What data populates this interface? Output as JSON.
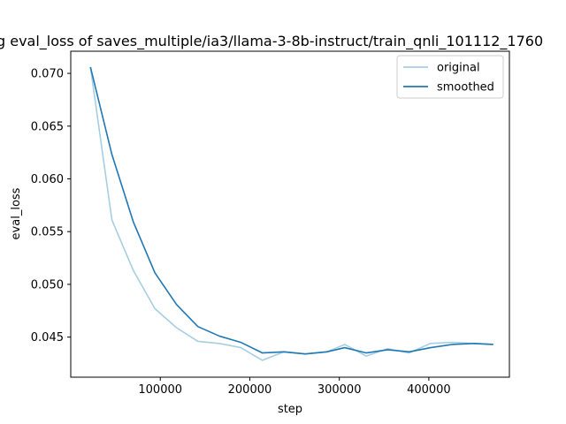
{
  "chart_data": {
    "type": "line",
    "title": "ng eval_loss of saves_multiple/ia3/llama-3-8b-instruct/train_qnli_101112_1760",
    "xlabel": "step",
    "ylabel": "eval_loss",
    "xlim": [
      0,
      490000
    ],
    "ylim": [
      0.0412,
      0.0721
    ],
    "xticks": [
      100000,
      200000,
      300000,
      400000
    ],
    "xtick_labels": [
      "100000",
      "200000",
      "300000",
      "400000"
    ],
    "yticks": [
      0.045,
      0.05,
      0.055,
      0.06,
      0.065,
      0.07
    ],
    "ytick_labels": [
      "0.045",
      "0.050",
      "0.055",
      "0.060",
      "0.065",
      "0.070"
    ],
    "grid": false,
    "legend_position": "top-right",
    "series": [
      {
        "name": "original",
        "color": "#a6cee3",
        "x": [
          22000,
          46000,
          70000,
          94000,
          118000,
          142000,
          166000,
          190000,
          214000,
          238000,
          262000,
          286000,
          306000,
          330000,
          354000,
          378000,
          402000,
          426000,
          450000,
          472000
        ],
        "y": [
          0.0706,
          0.0561,
          0.0513,
          0.0477,
          0.0459,
          0.0446,
          0.0444,
          0.044,
          0.0428,
          0.0436,
          0.0434,
          0.0436,
          0.0443,
          0.0432,
          0.0439,
          0.0435,
          0.0444,
          0.0445,
          0.0444,
          0.0443
        ]
      },
      {
        "name": "smoothed",
        "color": "#1f78b4",
        "x": [
          22000,
          46000,
          70000,
          94000,
          118000,
          142000,
          166000,
          190000,
          214000,
          238000,
          262000,
          286000,
          306000,
          330000,
          354000,
          378000,
          402000,
          426000,
          450000,
          472000
        ],
        "y": [
          0.0706,
          0.0623,
          0.0559,
          0.0511,
          0.0481,
          0.046,
          0.0451,
          0.0445,
          0.0435,
          0.0436,
          0.0434,
          0.0436,
          0.044,
          0.0435,
          0.0438,
          0.0436,
          0.044,
          0.0443,
          0.0444,
          0.0443
        ]
      }
    ]
  }
}
